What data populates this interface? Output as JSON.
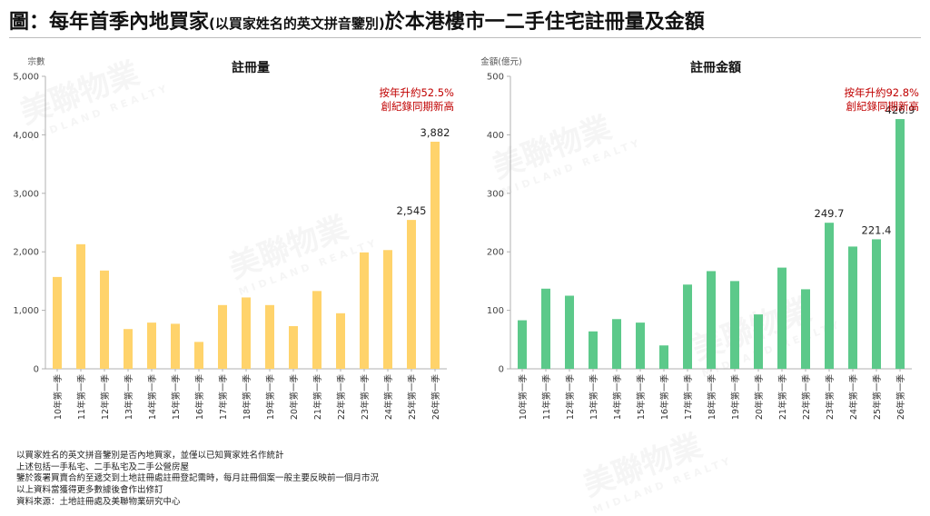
{
  "page": {
    "title_main": "圖：每年首季內地買家",
    "title_paren": "(以買家姓名的英文拼音鑒別)",
    "title_rest": "於本港樓市一二手住宅註冊量及金額"
  },
  "watermark": {
    "name": "美聯物業",
    "name_en": "MIDLAND REALTY"
  },
  "chart_data": [
    {
      "type": "bar",
      "title": "註冊量",
      "unit_label": "宗數",
      "color": "#FFD36B",
      "categories": [
        "10年第一季",
        "11年第一季",
        "12年第一季",
        "13年第一季",
        "14年第一季",
        "15年第一季",
        "16年第一季",
        "17年第一季",
        "18年第一季",
        "19年第一季",
        "20年第一季",
        "21年第一季",
        "22年第一季",
        "23年第一季",
        "24年第一季",
        "25年第一季",
        "26年第一季"
      ],
      "values": [
        1570,
        2130,
        1680,
        680,
        790,
        770,
        460,
        1090,
        1220,
        1090,
        730,
        1330,
        950,
        1990,
        2030,
        2545,
        3882
      ],
      "data_labels": [
        "",
        "",
        "",
        "",
        "",
        "",
        "",
        "",
        "",
        "",
        "",
        "",
        "",
        "",
        "",
        "2,545",
        "3,882"
      ],
      "ylim": [
        0,
        5000
      ],
      "yticks": [
        0,
        1000,
        2000,
        3000,
        4000,
        5000
      ],
      "ytick_labels": [
        "0",
        "1,000",
        "2,000",
        "3,000",
        "4,000",
        "5,000"
      ],
      "annotation": [
        "按年升約52.5%",
        "創紀錄同期新高"
      ],
      "annotation_color": "#C00000",
      "grid": false
    },
    {
      "type": "bar",
      "title": "註冊金額",
      "unit_label": "金額(億元)",
      "color": "#5CC98A",
      "categories": [
        "10年第一季",
        "11年第一季",
        "12年第一季",
        "13年第一季",
        "14年第一季",
        "15年第一季",
        "16年第一季",
        "17年第一季",
        "18年第一季",
        "19年第一季",
        "20年第一季",
        "21年第一季",
        "22年第一季",
        "23年第一季",
        "24年第一季",
        "25年第一季",
        "26年第一季"
      ],
      "values": [
        83,
        137,
        125,
        64,
        85,
        79,
        40,
        144,
        167,
        150,
        93,
        173,
        136,
        249.7,
        209,
        221.4,
        426.9
      ],
      "data_labels": [
        "",
        "",
        "",
        "",
        "",
        "",
        "",
        "",
        "",
        "",
        "",
        "",
        "",
        "249.7",
        "",
        "221.4",
        "426.9"
      ],
      "ylim": [
        0,
        500
      ],
      "yticks": [
        0,
        100,
        200,
        300,
        400,
        500
      ],
      "ytick_labels": [
        "0",
        "100",
        "200",
        "300",
        "400",
        "500"
      ],
      "annotation": [
        "按年升約92.8%",
        "創紀錄同期新高"
      ],
      "annotation_color": "#C00000",
      "grid": false
    }
  ],
  "notes": [
    "以買家姓名的英文拼音鑒別是否內地買家，並僅以已知買家姓名作統計",
    "上述包括一手私宅、二手私宅及二手公營房屋",
    "鑒於簽署買賣合約至遞交到土地註冊處註冊登記需時，每月註冊個案一般主要反映前一個月市況",
    "以上資料當獲得更多數據後會作出修訂",
    "資料來源：土地註冊處及美聯物業研究中心"
  ]
}
